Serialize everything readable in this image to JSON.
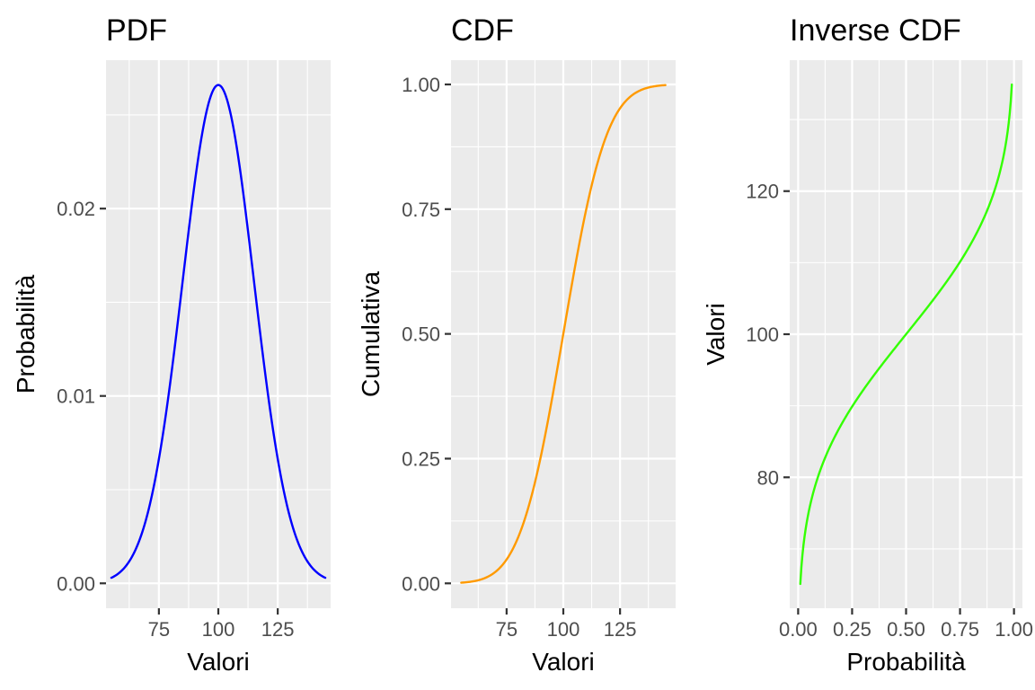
{
  "chart_data": [
    {
      "id": "pdf",
      "type": "line",
      "title": "PDF",
      "xlabel": "Valori",
      "ylabel": "Probabilità",
      "color": "#0000ff",
      "distribution": {
        "family": "normal",
        "mean": 100,
        "sd": 15
      },
      "x_range": [
        55,
        145
      ],
      "xlim": [
        52.75,
        147.25
      ],
      "ylim": [
        -0.00133,
        0.02792
      ],
      "x_ticks": [
        {
          "value": 75,
          "label": "75"
        },
        {
          "value": 100,
          "label": "100"
        },
        {
          "value": 125,
          "label": "125"
        }
      ],
      "y_ticks": [
        {
          "value": 0.0,
          "label": "0.00"
        },
        {
          "value": 0.01,
          "label": "0.01"
        },
        {
          "value": 0.02,
          "label": "0.02"
        }
      ],
      "grid": true,
      "series": [
        {
          "x": [
            55,
            60,
            65,
            70,
            75,
            80,
            85,
            90,
            95,
            100,
            105,
            110,
            115,
            120,
            125,
            130,
            135,
            140,
            145
          ],
          "y": [
            0.0003,
            0.00076,
            0.00173,
            0.0036,
            0.00665,
            0.01093,
            0.01613,
            0.0213,
            0.02516,
            0.0266,
            0.02516,
            0.0213,
            0.01613,
            0.01093,
            0.00665,
            0.0036,
            0.00173,
            0.00076,
            0.0003
          ]
        }
      ]
    },
    {
      "id": "cdf",
      "type": "line",
      "title": "CDF",
      "xlabel": "Valori",
      "ylabel": "Cumulativa",
      "color": "#ff9a00",
      "distribution": {
        "family": "normal",
        "mean": 100,
        "sd": 15
      },
      "x_range": [
        55,
        145
      ],
      "xlim": [
        50.5,
        149.5
      ],
      "ylim": [
        -0.0499,
        1.0486
      ],
      "x_ticks": [
        {
          "value": 75,
          "label": "75"
        },
        {
          "value": 100,
          "label": "100"
        },
        {
          "value": 125,
          "label": "125"
        }
      ],
      "y_ticks": [
        {
          "value": 0.0,
          "label": "0.00"
        },
        {
          "value": 0.25,
          "label": "0.25"
        },
        {
          "value": 0.5,
          "label": "0.50"
        },
        {
          "value": 0.75,
          "label": "0.75"
        },
        {
          "value": 1.0,
          "label": "1.00"
        }
      ],
      "grid": true,
      "series": [
        {
          "x": [
            55,
            60,
            65,
            70,
            75,
            80,
            85,
            90,
            95,
            100,
            105,
            110,
            115,
            120,
            125,
            130,
            135,
            140,
            145
          ],
          "y": [
            0.0013,
            0.0038,
            0.0098,
            0.0228,
            0.0478,
            0.0912,
            0.1587,
            0.2525,
            0.3694,
            0.5,
            0.6306,
            0.7475,
            0.8413,
            0.9088,
            0.9522,
            0.9772,
            0.9902,
            0.9962,
            0.9987
          ]
        }
      ]
    },
    {
      "id": "inverse-cdf",
      "type": "line",
      "title": "Inverse CDF",
      "xlabel": "Probabilità",
      "ylabel": "Valori",
      "color": "#33ff00",
      "distribution": {
        "family": "normal",
        "mean": 100,
        "sd": 15
      },
      "x_range": [
        0.01,
        0.99
      ],
      "xlim": [
        -0.039,
        1.039
      ],
      "ylim": [
        61.7,
        138.3
      ],
      "x_ticks": [
        {
          "value": 0.0,
          "label": "0.00"
        },
        {
          "value": 0.25,
          "label": "0.25"
        },
        {
          "value": 0.5,
          "label": "0.50"
        },
        {
          "value": 0.75,
          "label": "0.75"
        },
        {
          "value": 1.0,
          "label": "1.00"
        }
      ],
      "y_ticks": [
        {
          "value": 80,
          "label": "80"
        },
        {
          "value": 100,
          "label": "100"
        },
        {
          "value": 120,
          "label": "120"
        }
      ],
      "grid": true,
      "series": [
        {
          "x": [
            0.01,
            0.02,
            0.05,
            0.1,
            0.15,
            0.2,
            0.25,
            0.3,
            0.4,
            0.5,
            0.6,
            0.7,
            0.75,
            0.8,
            0.85,
            0.9,
            0.95,
            0.98,
            0.99
          ],
          "y": [
            65.1,
            69.2,
            75.3,
            80.8,
            84.5,
            87.4,
            89.9,
            92.1,
            96.2,
            100.0,
            103.8,
            107.9,
            110.1,
            112.6,
            115.5,
            119.2,
            124.7,
            130.8,
            134.9
          ]
        }
      ]
    }
  ]
}
